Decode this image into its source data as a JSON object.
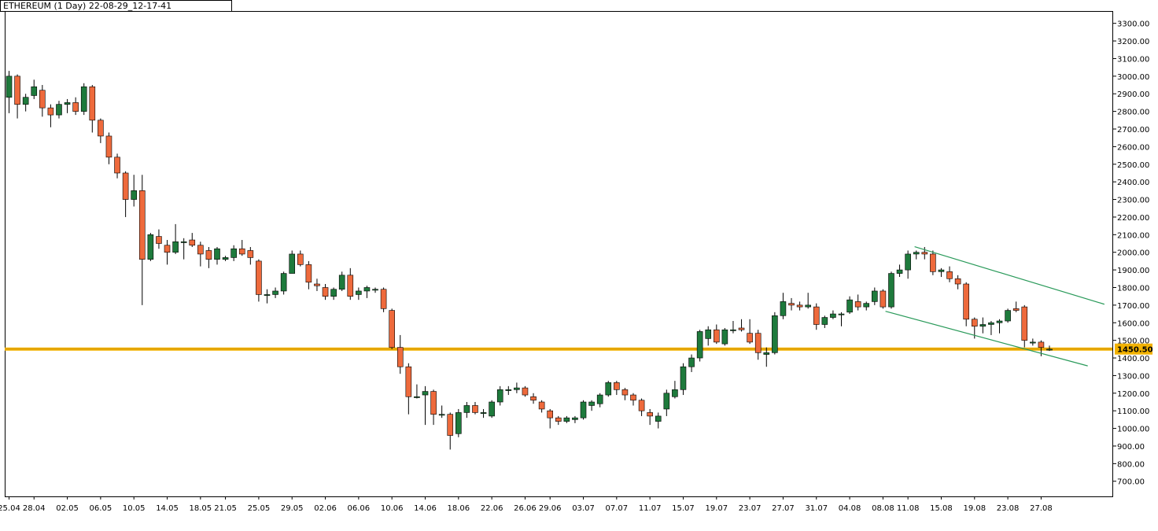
{
  "window": {
    "title": "ETHEREUM (1 Day) 22-08-29_12-17-41"
  },
  "chart_data": {
    "type": "candlestick",
    "title": "ETHEREUM (1 Day) 22-08-29_12-17-41",
    "y_ticks": [
      700,
      800,
      900,
      1000,
      1100,
      1200,
      1300,
      1400,
      1500,
      1600,
      1700,
      1800,
      1900,
      2000,
      2100,
      2200,
      2300,
      2400,
      2500,
      2600,
      2700,
      2800,
      2900,
      3000,
      3100,
      3200,
      3300
    ],
    "ylim": [
      614,
      3370
    ],
    "x_ticks": [
      "25.04",
      "28.04",
      "02.05",
      "06.05",
      "10.05",
      "14.05",
      "18.05",
      "21.05",
      "25.05",
      "29.05",
      "02.06",
      "06.06",
      "10.06",
      "14.06",
      "18.06",
      "22.06",
      "26.06",
      "29.06",
      "03.07",
      "07.07",
      "11.07",
      "15.07",
      "19.07",
      "23.07",
      "27.07",
      "31.07",
      "04.08",
      "08.08",
      "11.08",
      "15.08",
      "19.08",
      "23.08",
      "27.08"
    ],
    "x_tick_index": [
      0,
      3,
      7,
      11,
      15,
      19,
      23,
      26,
      30,
      34,
      38,
      42,
      46,
      50,
      54,
      58,
      62,
      65,
      69,
      73,
      77,
      81,
      85,
      89,
      93,
      97,
      101,
      105,
      108,
      112,
      116,
      120,
      124
    ],
    "support_level": {
      "value": 1450.5,
      "label": "1450.50",
      "color": "#f2b200"
    },
    "channel_lines": [
      {
        "start": {
          "index": 105.3,
          "price": 1665
        },
        "end": {
          "index": 129.6,
          "price": 1355
        }
      },
      {
        "start": {
          "index": 108.8,
          "price": 2032
        },
        "end": {
          "index": 131.6,
          "price": 1705
        }
      }
    ],
    "colors": {
      "up": "#1e7a3c",
      "down": "#ee6a3c",
      "wick": "#000000",
      "channel": "#2a9a5a"
    },
    "candles": [
      {
        "o": 2880,
        "h": 3030,
        "l": 2790,
        "c": 3000
      },
      {
        "o": 3000,
        "h": 3010,
        "l": 2760,
        "c": 2840
      },
      {
        "o": 2840,
        "h": 2900,
        "l": 2800,
        "c": 2880
      },
      {
        "o": 2890,
        "h": 2980,
        "l": 2870,
        "c": 2940
      },
      {
        "o": 2920,
        "h": 2950,
        "l": 2770,
        "c": 2820
      },
      {
        "o": 2820,
        "h": 2840,
        "l": 2710,
        "c": 2780
      },
      {
        "o": 2780,
        "h": 2860,
        "l": 2760,
        "c": 2840
      },
      {
        "o": 2840,
        "h": 2870,
        "l": 2790,
        "c": 2850
      },
      {
        "o": 2850,
        "h": 2880,
        "l": 2780,
        "c": 2800
      },
      {
        "o": 2800,
        "h": 2960,
        "l": 2780,
        "c": 2940
      },
      {
        "o": 2940,
        "h": 2950,
        "l": 2680,
        "c": 2750
      },
      {
        "o": 2750,
        "h": 2760,
        "l": 2620,
        "c": 2660
      },
      {
        "o": 2660,
        "h": 2680,
        "l": 2500,
        "c": 2540
      },
      {
        "o": 2540,
        "h": 2560,
        "l": 2420,
        "c": 2450
      },
      {
        "o": 2450,
        "h": 2460,
        "l": 2200,
        "c": 2300
      },
      {
        "o": 2300,
        "h": 2440,
        "l": 2260,
        "c": 2350
      },
      {
        "o": 2350,
        "h": 2440,
        "l": 1700,
        "c": 1960
      },
      {
        "o": 1960,
        "h": 2110,
        "l": 1950,
        "c": 2100
      },
      {
        "o": 2090,
        "h": 2130,
        "l": 2020,
        "c": 2050
      },
      {
        "o": 2040,
        "h": 2070,
        "l": 1930,
        "c": 2000
      },
      {
        "o": 2000,
        "h": 2160,
        "l": 1990,
        "c": 2060
      },
      {
        "o": 2060,
        "h": 2080,
        "l": 1960,
        "c": 2060
      },
      {
        "o": 2070,
        "h": 2110,
        "l": 2030,
        "c": 2040
      },
      {
        "o": 2040,
        "h": 2060,
        "l": 1920,
        "c": 1990
      },
      {
        "o": 2010,
        "h": 2030,
        "l": 1910,
        "c": 1960
      },
      {
        "o": 1960,
        "h": 2030,
        "l": 1930,
        "c": 2020
      },
      {
        "o": 1960,
        "h": 1980,
        "l": 1950,
        "c": 1970
      },
      {
        "o": 1970,
        "h": 2040,
        "l": 1950,
        "c": 2020
      },
      {
        "o": 2020,
        "h": 2070,
        "l": 1980,
        "c": 1990
      },
      {
        "o": 2010,
        "h": 2030,
        "l": 1930,
        "c": 1970
      },
      {
        "o": 1950,
        "h": 1960,
        "l": 1720,
        "c": 1760
      },
      {
        "o": 1760,
        "h": 1790,
        "l": 1710,
        "c": 1760
      },
      {
        "o": 1760,
        "h": 1800,
        "l": 1740,
        "c": 1780
      },
      {
        "o": 1780,
        "h": 1890,
        "l": 1760,
        "c": 1880
      },
      {
        "o": 1880,
        "h": 2010,
        "l": 1880,
        "c": 1990
      },
      {
        "o": 1990,
        "h": 2010,
        "l": 1920,
        "c": 1930
      },
      {
        "o": 1930,
        "h": 1950,
        "l": 1790,
        "c": 1830
      },
      {
        "o": 1820,
        "h": 1850,
        "l": 1780,
        "c": 1810
      },
      {
        "o": 1800,
        "h": 1820,
        "l": 1730,
        "c": 1750
      },
      {
        "o": 1750,
        "h": 1800,
        "l": 1730,
        "c": 1790
      },
      {
        "o": 1790,
        "h": 1890,
        "l": 1780,
        "c": 1870
      },
      {
        "o": 1870,
        "h": 1910,
        "l": 1730,
        "c": 1750
      },
      {
        "o": 1760,
        "h": 1800,
        "l": 1730,
        "c": 1780
      },
      {
        "o": 1780,
        "h": 1810,
        "l": 1740,
        "c": 1800
      },
      {
        "o": 1790,
        "h": 1800,
        "l": 1770,
        "c": 1790
      },
      {
        "o": 1790,
        "h": 1800,
        "l": 1660,
        "c": 1680
      },
      {
        "o": 1670,
        "h": 1680,
        "l": 1450,
        "c": 1460
      },
      {
        "o": 1460,
        "h": 1530,
        "l": 1310,
        "c": 1350
      },
      {
        "o": 1350,
        "h": 1370,
        "l": 1080,
        "c": 1180
      },
      {
        "o": 1180,
        "h": 1250,
        "l": 1170,
        "c": 1180
      },
      {
        "o": 1190,
        "h": 1240,
        "l": 1020,
        "c": 1210
      },
      {
        "o": 1210,
        "h": 1220,
        "l": 1020,
        "c": 1080
      },
      {
        "o": 1080,
        "h": 1130,
        "l": 1060,
        "c": 1080
      },
      {
        "o": 1080,
        "h": 1090,
        "l": 880,
        "c": 960
      },
      {
        "o": 970,
        "h": 1110,
        "l": 950,
        "c": 1090
      },
      {
        "o": 1090,
        "h": 1150,
        "l": 1060,
        "c": 1130
      },
      {
        "o": 1130,
        "h": 1150,
        "l": 1080,
        "c": 1090
      },
      {
        "o": 1090,
        "h": 1110,
        "l": 1060,
        "c": 1090
      },
      {
        "o": 1070,
        "h": 1160,
        "l": 1060,
        "c": 1150
      },
      {
        "o": 1150,
        "h": 1240,
        "l": 1130,
        "c": 1220
      },
      {
        "o": 1220,
        "h": 1240,
        "l": 1190,
        "c": 1220
      },
      {
        "o": 1220,
        "h": 1260,
        "l": 1200,
        "c": 1230
      },
      {
        "o": 1230,
        "h": 1240,
        "l": 1180,
        "c": 1190
      },
      {
        "o": 1180,
        "h": 1200,
        "l": 1140,
        "c": 1160
      },
      {
        "o": 1150,
        "h": 1160,
        "l": 1090,
        "c": 1110
      },
      {
        "o": 1100,
        "h": 1110,
        "l": 1000,
        "c": 1060
      },
      {
        "o": 1060,
        "h": 1070,
        "l": 1020,
        "c": 1040
      },
      {
        "o": 1040,
        "h": 1070,
        "l": 1030,
        "c": 1060
      },
      {
        "o": 1050,
        "h": 1070,
        "l": 1030,
        "c": 1060
      },
      {
        "o": 1060,
        "h": 1160,
        "l": 1050,
        "c": 1150
      },
      {
        "o": 1130,
        "h": 1160,
        "l": 1100,
        "c": 1150
      },
      {
        "o": 1140,
        "h": 1200,
        "l": 1120,
        "c": 1190
      },
      {
        "o": 1190,
        "h": 1270,
        "l": 1180,
        "c": 1260
      },
      {
        "o": 1260,
        "h": 1270,
        "l": 1190,
        "c": 1220
      },
      {
        "o": 1220,
        "h": 1230,
        "l": 1160,
        "c": 1190
      },
      {
        "o": 1190,
        "h": 1200,
        "l": 1130,
        "c": 1160
      },
      {
        "o": 1160,
        "h": 1170,
        "l": 1070,
        "c": 1100
      },
      {
        "o": 1090,
        "h": 1110,
        "l": 1020,
        "c": 1070
      },
      {
        "o": 1040,
        "h": 1090,
        "l": 1000,
        "c": 1070
      },
      {
        "o": 1110,
        "h": 1220,
        "l": 1070,
        "c": 1200
      },
      {
        "o": 1180,
        "h": 1270,
        "l": 1170,
        "c": 1220
      },
      {
        "o": 1220,
        "h": 1370,
        "l": 1190,
        "c": 1350
      },
      {
        "o": 1350,
        "h": 1420,
        "l": 1320,
        "c": 1400
      },
      {
        "o": 1400,
        "h": 1560,
        "l": 1380,
        "c": 1550
      },
      {
        "o": 1510,
        "h": 1580,
        "l": 1470,
        "c": 1560
      },
      {
        "o": 1560,
        "h": 1590,
        "l": 1480,
        "c": 1490
      },
      {
        "o": 1480,
        "h": 1570,
        "l": 1470,
        "c": 1560
      },
      {
        "o": 1560,
        "h": 1610,
        "l": 1540,
        "c": 1560
      },
      {
        "o": 1570,
        "h": 1620,
        "l": 1550,
        "c": 1560
      },
      {
        "o": 1540,
        "h": 1620,
        "l": 1480,
        "c": 1490
      },
      {
        "o": 1540,
        "h": 1560,
        "l": 1390,
        "c": 1430
      },
      {
        "o": 1420,
        "h": 1460,
        "l": 1350,
        "c": 1430
      },
      {
        "o": 1430,
        "h": 1660,
        "l": 1420,
        "c": 1640
      },
      {
        "o": 1640,
        "h": 1770,
        "l": 1620,
        "c": 1720
      },
      {
        "o": 1710,
        "h": 1740,
        "l": 1670,
        "c": 1700
      },
      {
        "o": 1700,
        "h": 1720,
        "l": 1670,
        "c": 1690
      },
      {
        "o": 1690,
        "h": 1770,
        "l": 1680,
        "c": 1700
      },
      {
        "o": 1690,
        "h": 1710,
        "l": 1560,
        "c": 1590
      },
      {
        "o": 1590,
        "h": 1640,
        "l": 1570,
        "c": 1630
      },
      {
        "o": 1630,
        "h": 1670,
        "l": 1620,
        "c": 1650
      },
      {
        "o": 1650,
        "h": 1660,
        "l": 1580,
        "c": 1650
      },
      {
        "o": 1660,
        "h": 1750,
        "l": 1650,
        "c": 1730
      },
      {
        "o": 1720,
        "h": 1760,
        "l": 1670,
        "c": 1690
      },
      {
        "o": 1690,
        "h": 1720,
        "l": 1670,
        "c": 1710
      },
      {
        "o": 1720,
        "h": 1800,
        "l": 1700,
        "c": 1780
      },
      {
        "o": 1780,
        "h": 1790,
        "l": 1680,
        "c": 1690
      },
      {
        "o": 1690,
        "h": 1890,
        "l": 1680,
        "c": 1880
      },
      {
        "o": 1880,
        "h": 1930,
        "l": 1860,
        "c": 1900
      },
      {
        "o": 1900,
        "h": 2010,
        "l": 1850,
        "c": 1990
      },
      {
        "o": 1990,
        "h": 2010,
        "l": 1960,
        "c": 2000
      },
      {
        "o": 2000,
        "h": 2030,
        "l": 1960,
        "c": 1990
      },
      {
        "o": 1990,
        "h": 2010,
        "l": 1870,
        "c": 1890
      },
      {
        "o": 1890,
        "h": 1910,
        "l": 1860,
        "c": 1900
      },
      {
        "o": 1890,
        "h": 1920,
        "l": 1830,
        "c": 1850
      },
      {
        "o": 1850,
        "h": 1870,
        "l": 1790,
        "c": 1820
      },
      {
        "o": 1820,
        "h": 1830,
        "l": 1580,
        "c": 1620
      },
      {
        "o": 1620,
        "h": 1630,
        "l": 1510,
        "c": 1580
      },
      {
        "o": 1580,
        "h": 1630,
        "l": 1540,
        "c": 1590
      },
      {
        "o": 1590,
        "h": 1610,
        "l": 1530,
        "c": 1600
      },
      {
        "o": 1600,
        "h": 1620,
        "l": 1540,
        "c": 1610
      },
      {
        "o": 1610,
        "h": 1680,
        "l": 1600,
        "c": 1670
      },
      {
        "o": 1680,
        "h": 1720,
        "l": 1660,
        "c": 1670
      },
      {
        "o": 1690,
        "h": 1700,
        "l": 1460,
        "c": 1500
      },
      {
        "o": 1490,
        "h": 1510,
        "l": 1470,
        "c": 1490
      },
      {
        "o": 1490,
        "h": 1500,
        "l": 1410,
        "c": 1460
      },
      {
        "o": 1450,
        "h": 1470,
        "l": 1440,
        "c": 1450
      }
    ]
  }
}
